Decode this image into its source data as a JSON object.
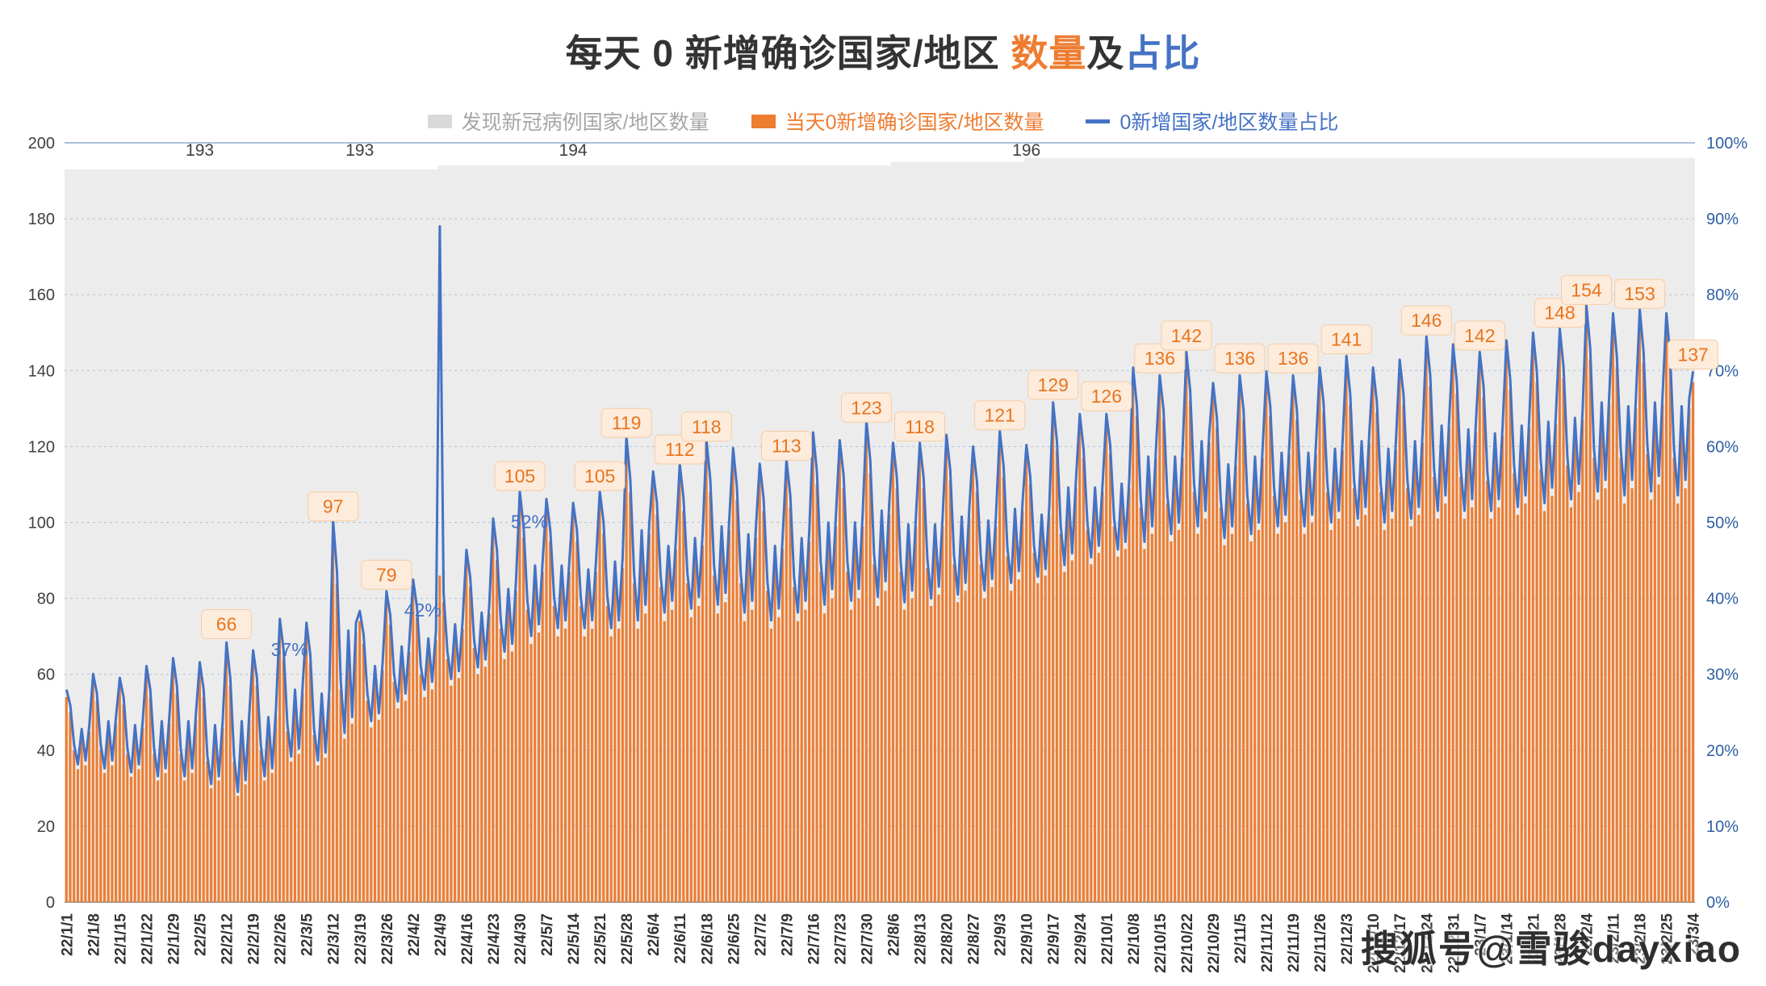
{
  "title": {
    "part1": "每天 0 新增确诊国家/地区 ",
    "part2": "数量",
    "part3": "及",
    "part4": "占比"
  },
  "legend": [
    {
      "label": "发现新冠病例国家/地区数量",
      "color": "#d9d9d9",
      "text_color": "#a6a6a6",
      "type": "area"
    },
    {
      "label": "当天0新增确诊国家/地区数量",
      "color": "#ED7D31",
      "text_color": "#ED7D31",
      "type": "bar"
    },
    {
      "label": "0新增国家/地区数量占比",
      "color": "#4472C4",
      "text_color": "#4472C4",
      "type": "line"
    }
  ],
  "watermark": "搜狐号@雪骏dayxiao",
  "colors": {
    "bar_orange": "#ED7D31",
    "line_blue": "#4472C4",
    "area_gray": "#ECECEC",
    "grid": "#AFC3DC",
    "grid_top": "#8FAAD0",
    "axis_left": "#404040",
    "axis_right": "#2E5FA3",
    "x_label": "#333333",
    "label_bg": "#FDEBDC",
    "label_border": "#F5CBA3",
    "label_text": "#E8761F",
    "total_label": "#404040",
    "bottom_axis": "#808080"
  },
  "chart_data": {
    "type": "combo",
    "series": [
      {
        "name": "发现新冠病例国家/地区数量",
        "type": "area",
        "axis": "left"
      },
      {
        "name": "当天0新增确诊国家/地区数量",
        "type": "bar",
        "axis": "left"
      },
      {
        "name": "0新增国家/地区数量占比",
        "type": "line",
        "axis": "right"
      }
    ],
    "left_axis": {
      "min": 0,
      "max": 200,
      "step": 20,
      "ticks": [
        "0",
        "20",
        "40",
        "60",
        "80",
        "100",
        "120",
        "140",
        "160",
        "180",
        "200"
      ]
    },
    "right_axis": {
      "min": 0,
      "max": 100,
      "step": 10,
      "ticks": [
        "0%",
        "10%",
        "20%",
        "30%",
        "40%",
        "50%",
        "60%",
        "70%",
        "80%",
        "90%",
        "100%"
      ]
    },
    "x_ticks": [
      "22/1/1",
      "22/1/8",
      "22/1/15",
      "22/1/22",
      "22/1/29",
      "22/2/5",
      "22/2/12",
      "22/2/19",
      "22/2/26",
      "22/3/5",
      "22/3/12",
      "22/3/19",
      "22/3/26",
      "22/4/2",
      "22/4/9",
      "22/4/16",
      "22/4/23",
      "22/4/30",
      "22/5/7",
      "22/5/14",
      "22/5/21",
      "22/5/28",
      "22/6/4",
      "22/6/11",
      "22/6/18",
      "22/6/25",
      "22/7/2",
      "22/7/9",
      "22/7/16",
      "22/7/23",
      "22/7/30",
      "22/8/6",
      "22/8/13",
      "22/8/20",
      "22/8/27",
      "22/9/3",
      "22/9/10",
      "22/9/17",
      "22/9/24",
      "22/10/1",
      "22/10/8",
      "22/10/15",
      "22/10/22",
      "22/10/29",
      "22/11/5",
      "22/11/12",
      "22/11/19",
      "22/11/26",
      "22/12/3",
      "22/12/10",
      "22/12/17",
      "22/12/24",
      "22/12/31",
      "23/1/7",
      "23/1/14",
      "23/1/21",
      "23/1/28",
      "23/2/4",
      "23/2/11",
      "23/2/18",
      "23/2/25",
      "23/3/4"
    ],
    "weekly": {
      "total": [
        193,
        193,
        193,
        193,
        193,
        193,
        193,
        193,
        193,
        193,
        193,
        193,
        193,
        193,
        194,
        194,
        194,
        194,
        194,
        194,
        194,
        194,
        194,
        194,
        194,
        194,
        194,
        194,
        194,
        194,
        194,
        195,
        195,
        195,
        195,
        195,
        196,
        196,
        196,
        196,
        196,
        196,
        196,
        196,
        196,
        196,
        196,
        196,
        196,
        196,
        196,
        196,
        196,
        196,
        196,
        196,
        196,
        196,
        196,
        196,
        196,
        196
      ],
      "bar_peak": [
        54,
        58,
        57,
        60,
        62,
        61,
        66,
        64,
        72,
        71,
        97,
        74,
        79,
        82,
        86,
        90,
        98,
        105,
        103,
        102,
        105,
        119,
        110,
        112,
        118,
        116,
        112,
        113,
        120,
        118,
        123,
        118,
        118,
        120,
        117,
        121,
        118,
        129,
        126,
        126,
        138,
        136,
        142,
        134,
        136,
        137,
        136,
        138,
        141,
        138,
        140,
        146,
        144,
        142,
        145,
        147,
        148,
        154,
        152,
        153,
        152,
        137
      ],
      "bar_trough": [
        34,
        33,
        32,
        31,
        30,
        28,
        26,
        30,
        35,
        34,
        40,
        45,
        50,
        52,
        55,
        58,
        62,
        66,
        68,
        68,
        68,
        70,
        72,
        73,
        74,
        72,
        70,
        72,
        74,
        75,
        76,
        75,
        76,
        77,
        78,
        80,
        82,
        85,
        87,
        89,
        91,
        93,
        95,
        92,
        93,
        95,
        95,
        96,
        97,
        96,
        97,
        99,
        99,
        99,
        100,
        101,
        102,
        103,
        103,
        104,
        103,
        100
      ]
    },
    "weekly_pattern": [
      1.0,
      0.78,
      0.28,
      0.05,
      0.5,
      0.12,
      0.55
    ],
    "pct_anomaly": {
      "week": 14,
      "day": 0,
      "date": "22/4/9",
      "pct": 89
    },
    "bar_labels": [
      {
        "week": 6,
        "value": 66
      },
      {
        "week": 10,
        "value": 97
      },
      {
        "week": 12,
        "value": 79
      },
      {
        "week": 17,
        "value": 105
      },
      {
        "week": 20,
        "value": 105
      },
      {
        "week": 21,
        "value": 119
      },
      {
        "week": 23,
        "value": 112
      },
      {
        "week": 24,
        "value": 118
      },
      {
        "week": 27,
        "value": 113
      },
      {
        "week": 30,
        "value": 123
      },
      {
        "week": 32,
        "value": 118
      },
      {
        "week": 35,
        "value": 121
      },
      {
        "week": 37,
        "value": 129
      },
      {
        "week": 39,
        "value": 126
      },
      {
        "week": 41,
        "value": 136
      },
      {
        "week": 42,
        "value": 142
      },
      {
        "week": 44,
        "value": 136
      },
      {
        "week": 46,
        "value": 136
      },
      {
        "week": 48,
        "value": 141
      },
      {
        "week": 51,
        "value": 146
      },
      {
        "week": 53,
        "value": 142
      },
      {
        "week": 56,
        "value": 148
      },
      {
        "week": 57,
        "value": 154
      },
      {
        "week": 59,
        "value": 153
      },
      {
        "week": 61,
        "value": 137
      }
    ],
    "pct_labels": [
      {
        "week": 8,
        "text": "37%"
      },
      {
        "week": 13,
        "text": "42%"
      },
      {
        "week": 17,
        "text": "52%"
      }
    ],
    "total_labels": [
      {
        "week": 5,
        "text": "193"
      },
      {
        "week": 11,
        "text": "193"
      },
      {
        "week": 19,
        "text": "194"
      },
      {
        "week": 36,
        "text": "196"
      }
    ]
  }
}
